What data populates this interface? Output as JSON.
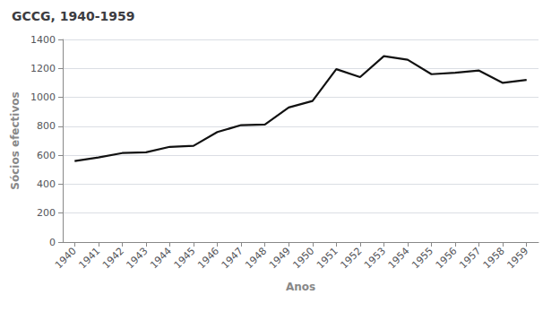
{
  "chart_data": {
    "type": "line",
    "title": "GCCG, 1940-1959",
    "xlabel": "Anos",
    "ylabel": "Sócios efectivos",
    "x": [
      1940,
      1941,
      1942,
      1943,
      1944,
      1945,
      1946,
      1947,
      1948,
      1949,
      1950,
      1951,
      1952,
      1953,
      1954,
      1955,
      1956,
      1957,
      1958,
      1959
    ],
    "values": [
      560,
      585,
      615,
      620,
      658,
      665,
      760,
      808,
      812,
      930,
      975,
      1195,
      1140,
      1285,
      1260,
      1160,
      1170,
      1185,
      1100,
      1120
    ],
    "color": "#111111",
    "xlim": [
      1939.5,
      1959.5
    ],
    "xticks": [
      1940,
      1941,
      1942,
      1943,
      1944,
      1945,
      1946,
      1947,
      1948,
      1949,
      1950,
      1951,
      1952,
      1953,
      1954,
      1955,
      1956,
      1957,
      1958,
      1959
    ],
    "ylim": [
      0,
      1400
    ],
    "yticks": [
      0,
      200,
      400,
      600,
      800,
      1000,
      1200,
      1400
    ],
    "grid": true
  }
}
